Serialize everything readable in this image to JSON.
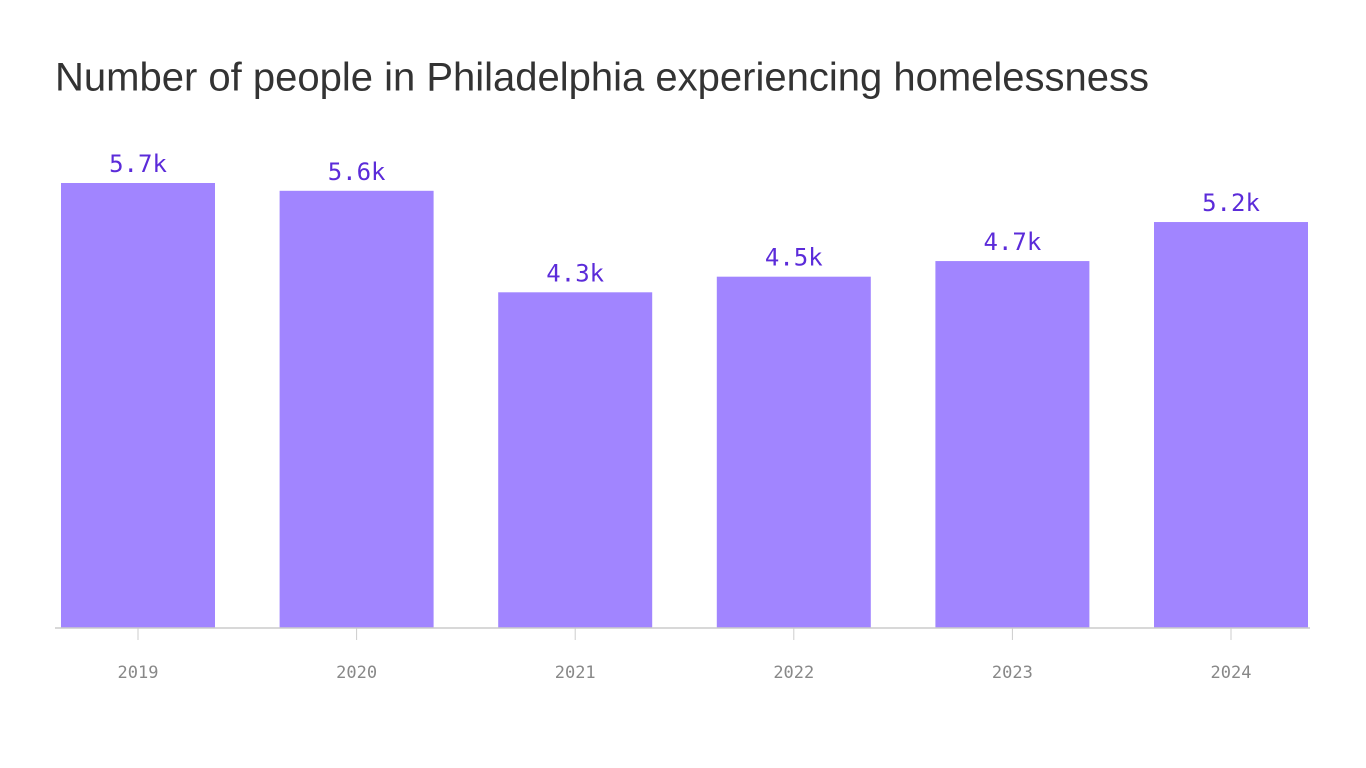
{
  "chart_data": {
    "type": "bar",
    "title": "Number of people in Philadelphia experiencing homelessness",
    "categories": [
      "2019",
      "2020",
      "2021",
      "2022",
      "2023",
      "2024"
    ],
    "values": [
      5.7,
      5.6,
      4.3,
      4.5,
      4.7,
      5.2
    ],
    "value_labels": [
      "5.7k",
      "5.6k",
      "4.3k",
      "4.5k",
      "4.7k",
      "5.2k"
    ],
    "color": "#a185ff"
  }
}
